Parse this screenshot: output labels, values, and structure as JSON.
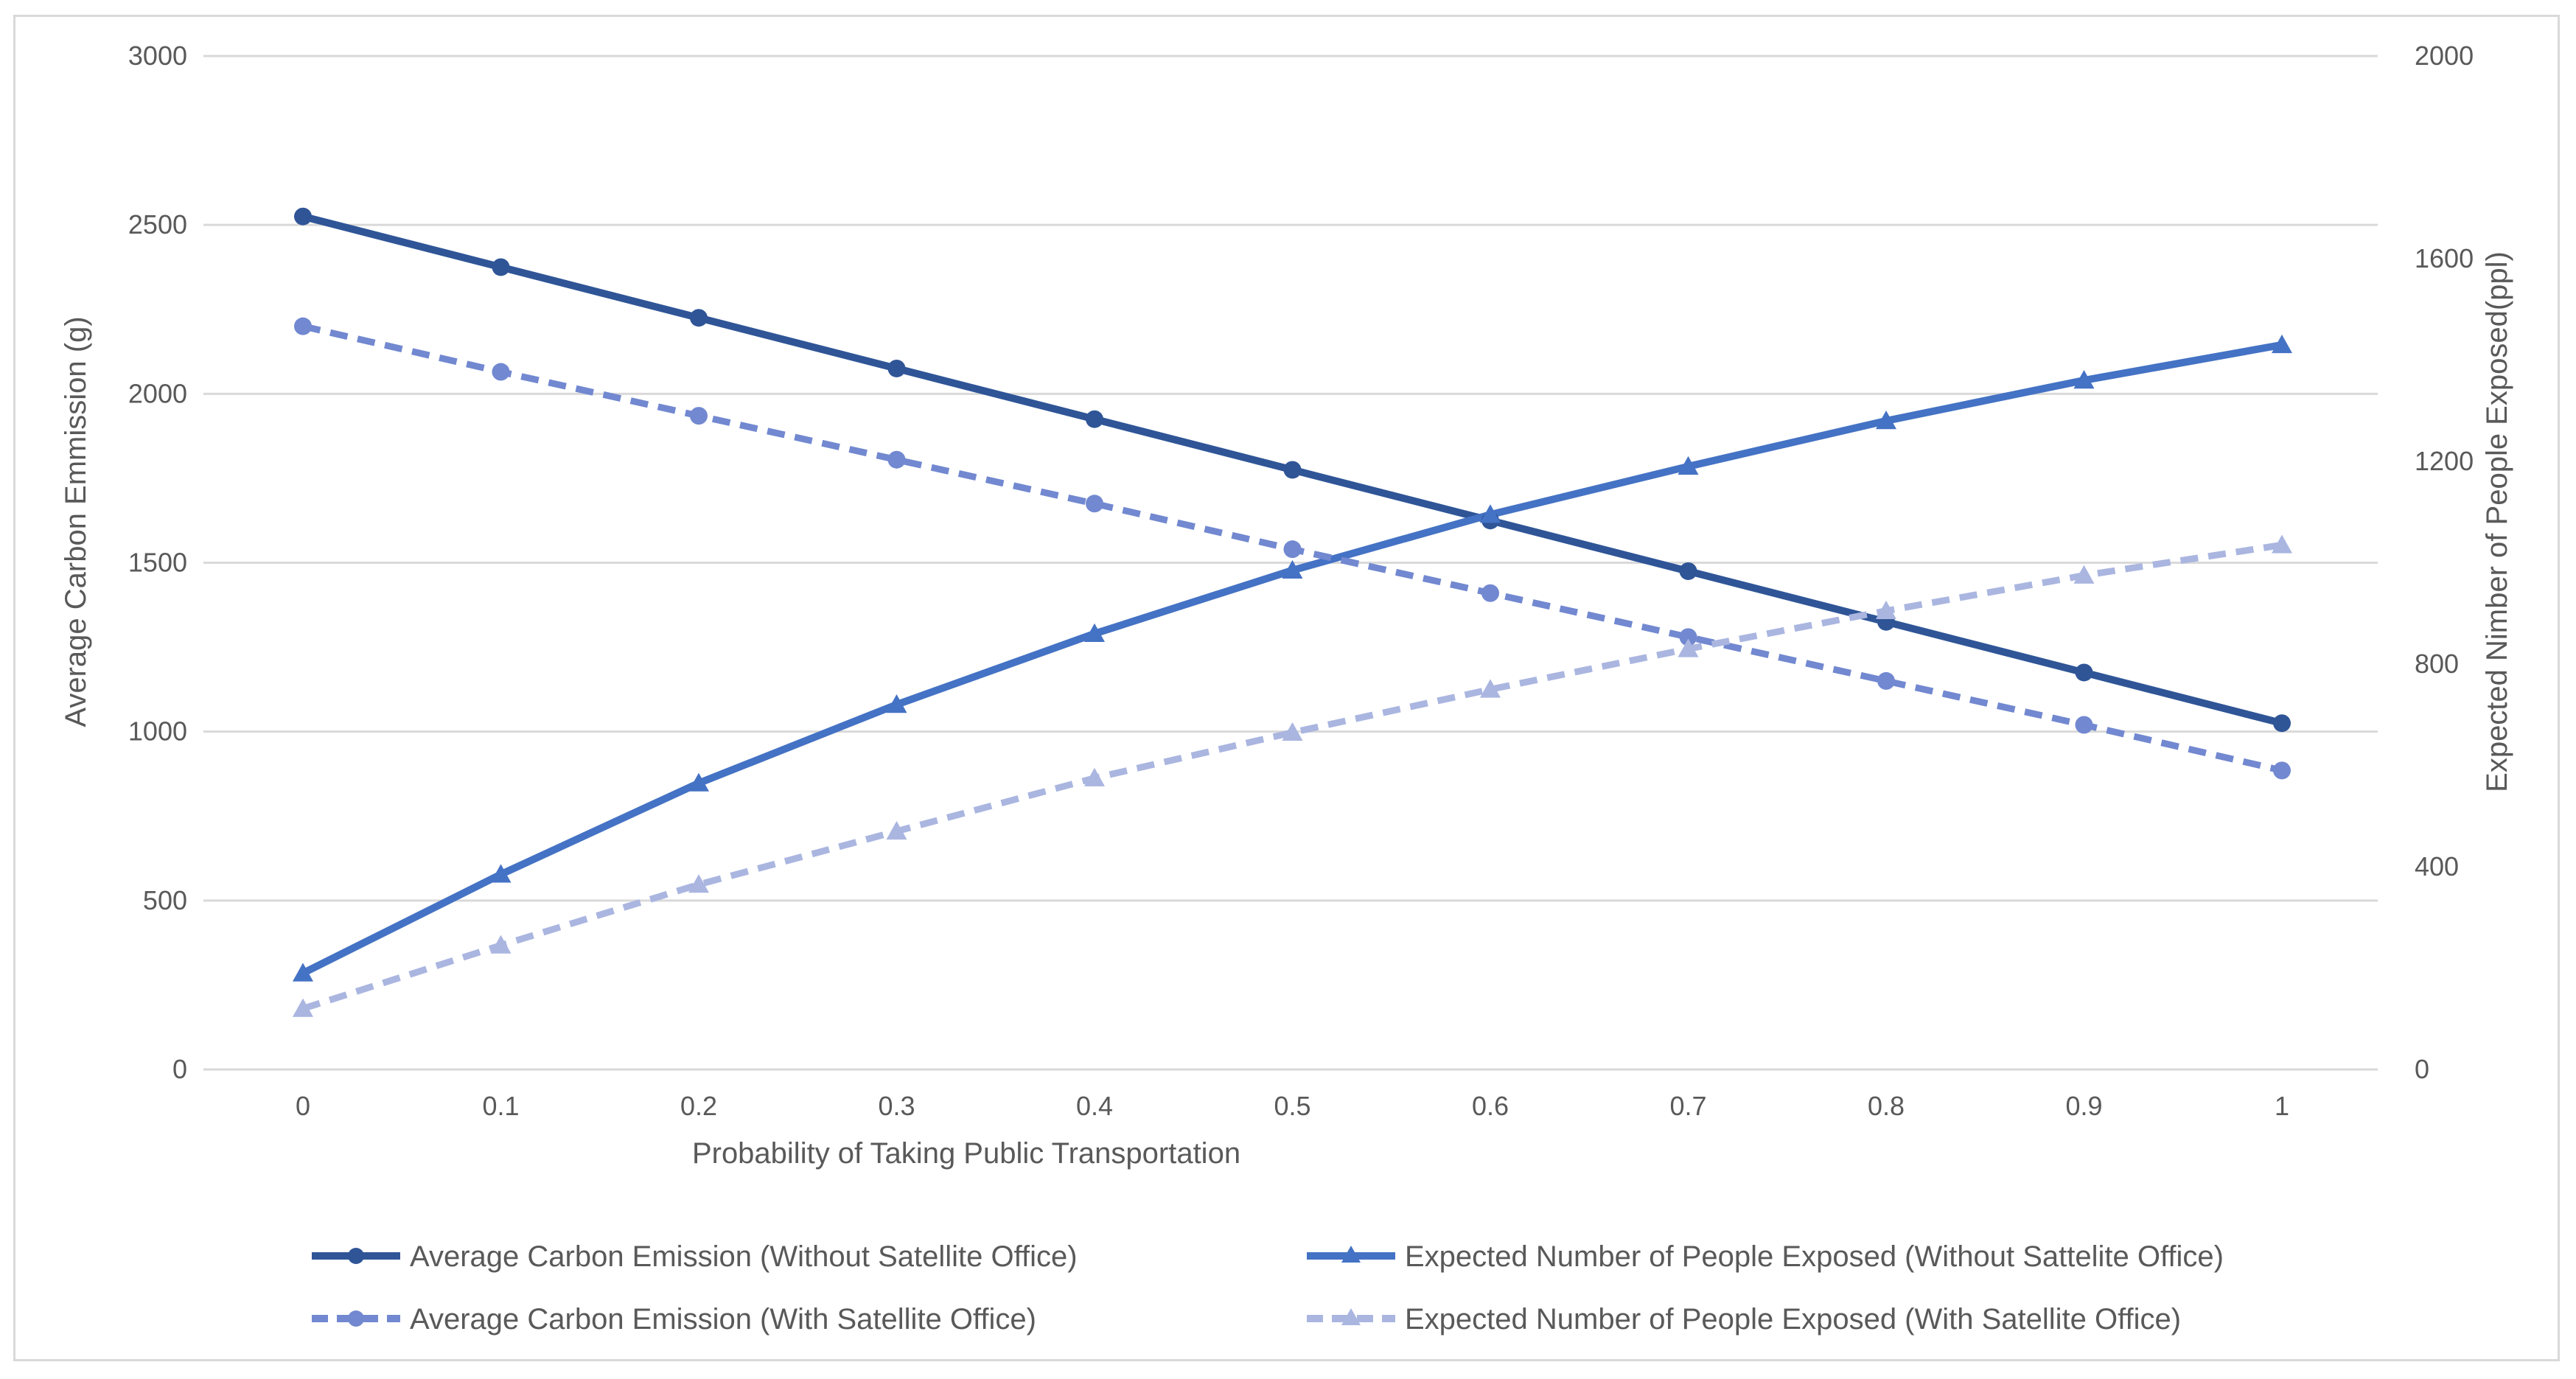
{
  "chart_data": {
    "type": "line",
    "xlabel": "Probability of Taking Public Transportation",
    "ylabel": "Average Carbon Emmission (g)",
    "y2label": "Expected Nimber of People Exposed(ppl)",
    "x": [
      0,
      0.1,
      0.2,
      0.3,
      0.4,
      0.5,
      0.6,
      0.7,
      0.8,
      0.9,
      1
    ],
    "x_tick_labels": [
      "0",
      "0.1",
      "0.2",
      "0.3",
      "0.4",
      "0.5",
      "0.6",
      "0.7",
      "0.8",
      "0.9",
      "1"
    ],
    "ylim": [
      0,
      3000
    ],
    "y_ticks": [
      0,
      500,
      1000,
      1500,
      2000,
      2500,
      3000
    ],
    "y_tick_labels": [
      "0",
      "500",
      "1000",
      "1500",
      "2000",
      "2500",
      "3000"
    ],
    "y2lim": [
      0,
      2000
    ],
    "y2_ticks": [
      0,
      400,
      800,
      1200,
      1600,
      2000
    ],
    "y2_tick_labels": [
      "0",
      "400",
      "800",
      "1200",
      "1600",
      "2000"
    ],
    "grid": true,
    "legend_position": "bottom",
    "series": [
      {
        "name": "Average Carbon Emission (Without Satellite Office)",
        "axis": "left",
        "color": "#2f5597",
        "style": "solid",
        "marker": "circle",
        "values": [
          2525,
          2375,
          2225,
          2075,
          1925,
          1775,
          1625,
          1475,
          1325,
          1175,
          1025
        ]
      },
      {
        "name": "Expected Number of People Exposed (Without Sattelite Office)",
        "axis": "right",
        "color": "#4472c4",
        "style": "solid",
        "marker": "triangle",
        "values": [
          190,
          385,
          565,
          720,
          860,
          985,
          1095,
          1190,
          1280,
          1360,
          1430
        ]
      },
      {
        "name": "Average Carbon Emission (With Satellite Office)",
        "axis": "left",
        "color": "#7288d0",
        "style": "dashed",
        "marker": "circle",
        "values": [
          2200,
          2065,
          1935,
          1805,
          1675,
          1540,
          1410,
          1280,
          1150,
          1020,
          885
        ]
      },
      {
        "name": "Expected Number of People Exposed (With Satellite Office)",
        "axis": "right",
        "color": "#aab6e0",
        "style": "dashed",
        "marker": "triangle",
        "values": [
          120,
          245,
          365,
          470,
          575,
          665,
          750,
          830,
          905,
          975,
          1035
        ]
      }
    ]
  }
}
